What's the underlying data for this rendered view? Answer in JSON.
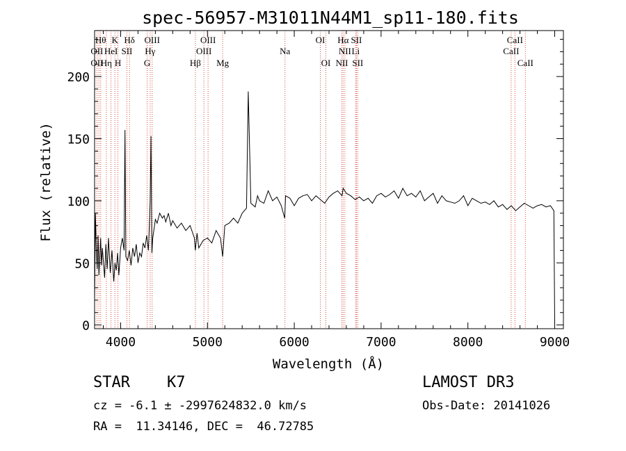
{
  "colors": {
    "spectrum": "#000000",
    "line_marker": "#d24a3a",
    "background": "#ffffff"
  },
  "chart_data": {
    "type": "line",
    "title": "spec-56957-M31011N44M1_sp11-180.fits",
    "xlabel": "Wavelength (Å)",
    "ylabel": "Flux (relative)",
    "xlim": [
      3700,
      9100
    ],
    "ylim": [
      -3,
      237
    ],
    "xticks": [
      4000,
      5000,
      6000,
      7000,
      8000,
      9000
    ],
    "yticks": [
      0,
      50,
      100,
      150,
      200
    ],
    "grid": false,
    "series": [
      {
        "x": [
          3700,
          3710,
          3720,
          3730,
          3740,
          3750,
          3760,
          3770,
          3780,
          3790,
          3800,
          3815,
          3830,
          3845,
          3860,
          3880,
          3900,
          3920,
          3935,
          3950,
          3965,
          3980,
          4000,
          4020,
          4040,
          4050,
          4060,
          4080,
          4100,
          4120,
          4140,
          4160,
          4180,
          4200,
          4220,
          4240,
          4260,
          4280,
          4300,
          4320,
          4340,
          4350,
          4360,
          4370,
          4380,
          4400,
          4420,
          4450,
          4480,
          4500,
          4520,
          4550,
          4580,
          4600,
          4650,
          4700,
          4750,
          4800,
          4850,
          4860,
          4880,
          4900,
          4950,
          5000,
          5050,
          5100,
          5150,
          5175,
          5200,
          5250,
          5300,
          5350,
          5400,
          5450,
          5470,
          5500,
          5550,
          5577,
          5600,
          5650,
          5700,
          5750,
          5800,
          5850,
          5890,
          5900,
          5950,
          6000,
          6050,
          6100,
          6150,
          6200,
          6250,
          6300,
          6350,
          6400,
          6450,
          6500,
          6550,
          6563,
          6600,
          6650,
          6700,
          6750,
          6800,
          6850,
          6900,
          6950,
          7000,
          7050,
          7100,
          7150,
          7200,
          7250,
          7300,
          7350,
          7400,
          7450,
          7500,
          7550,
          7600,
          7650,
          7700,
          7750,
          7800,
          7850,
          7900,
          7950,
          8000,
          8050,
          8100,
          8150,
          8200,
          8250,
          8300,
          8350,
          8400,
          8450,
          8500,
          8550,
          8600,
          8650,
          8700,
          8750,
          8800,
          8850,
          8900,
          8950,
          8990,
          9000
        ],
        "y": [
          20,
          90,
          60,
          45,
          72,
          40,
          55,
          70,
          48,
          62,
          52,
          38,
          65,
          45,
          70,
          42,
          60,
          35,
          50,
          44,
          58,
          40,
          62,
          70,
          60,
          157,
          55,
          52,
          60,
          48,
          62,
          55,
          65,
          50,
          58,
          55,
          66,
          62,
          72,
          60,
          100,
          152,
          58,
          70,
          75,
          85,
          82,
          90,
          86,
          88,
          83,
          90,
          80,
          84,
          78,
          82,
          76,
          80,
          70,
          60,
          74,
          62,
          68,
          70,
          66,
          76,
          70,
          55,
          80,
          82,
          86,
          82,
          90,
          94,
          188,
          98,
          95,
          104,
          100,
          98,
          108,
          100,
          103,
          96,
          86,
          104,
          102,
          96,
          102,
          104,
          105,
          100,
          104,
          101,
          98,
          103,
          106,
          108,
          104,
          110,
          106,
          104,
          101,
          103,
          100,
          102,
          98,
          104,
          106,
          103,
          105,
          108,
          102,
          110,
          104,
          106,
          103,
          108,
          100,
          103,
          106,
          98,
          104,
          100,
          99,
          98,
          100,
          104,
          96,
          102,
          100,
          98,
          99,
          97,
          100,
          95,
          97,
          93,
          96,
          92,
          95,
          98,
          96,
          94,
          96,
          97,
          95,
          96,
          92,
          2
        ]
      }
    ],
    "line_markers": [
      {
        "x": 3727,
        "labels": [
          "OII"
        ]
      },
      {
        "x": 3750,
        "labels": [
          "OII"
        ]
      },
      {
        "x": 3770,
        "labels": [
          "Hθ"
        ]
      },
      {
        "x": 3835,
        "labels": [
          "Hη"
        ]
      },
      {
        "x": 3889,
        "labels": [
          "HeI"
        ]
      },
      {
        "x": 3934,
        "labels": [
          "K"
        ]
      },
      {
        "x": 3969,
        "labels": [
          "H"
        ]
      },
      {
        "x": 4072,
        "labels": [
          "SII"
        ]
      },
      {
        "x": 4102,
        "labels": [
          "Hδ"
        ]
      },
      {
        "x": 4305,
        "labels": [
          "G"
        ]
      },
      {
        "x": 4340,
        "labels": [
          "Hγ"
        ]
      },
      {
        "x": 4363,
        "labels": [
          "OIII"
        ]
      },
      {
        "x": 4861,
        "labels": [
          "Hβ"
        ]
      },
      {
        "x": 4959,
        "labels": [
          "OIII"
        ]
      },
      {
        "x": 5007,
        "labels": [
          "OIII"
        ]
      },
      {
        "x": 5175,
        "labels": [
          "Mg"
        ]
      },
      {
        "x": 5893,
        "labels": [
          "Na"
        ]
      },
      {
        "x": 6300,
        "labels": [
          "OI"
        ]
      },
      {
        "x": 6364,
        "labels": [
          "OI"
        ]
      },
      {
        "x": 6548,
        "labels": [
          "NII"
        ]
      },
      {
        "x": 6563,
        "labels": [
          "Hα"
        ]
      },
      {
        "x": 6583,
        "labels": [
          "NII"
        ]
      },
      {
        "x": 6707,
        "labels": [
          "Li"
        ]
      },
      {
        "x": 6716,
        "labels": [
          "SII"
        ]
      },
      {
        "x": 6731,
        "labels": [
          "SII"
        ]
      },
      {
        "x": 8498,
        "labels": [
          "CaII"
        ]
      },
      {
        "x": 8542,
        "labels": [
          "CaII"
        ]
      },
      {
        "x": 8662,
        "labels": [
          "CaII"
        ]
      }
    ],
    "line_labels": [
      {
        "text": "Hθ",
        "x": 3770,
        "row": 1
      },
      {
        "text": "K",
        "x": 3934,
        "row": 1
      },
      {
        "text": "Hδ",
        "x": 4102,
        "row": 1
      },
      {
        "text": "OIII",
        "x": 4363,
        "row": 1
      },
      {
        "text": "OIII",
        "x": 5007,
        "row": 1
      },
      {
        "text": "OI",
        "x": 6300,
        "row": 1
      },
      {
        "text": "Hα",
        "x": 6563,
        "row": 1
      },
      {
        "text": "SII",
        "x": 6716,
        "row": 1
      },
      {
        "text": "CaII",
        "x": 8542,
        "row": 1
      },
      {
        "text": "OII",
        "x": 3727,
        "row": 2
      },
      {
        "text": "HeI",
        "x": 3889,
        "row": 2
      },
      {
        "text": "SII",
        "x": 4072,
        "row": 2
      },
      {
        "text": "Hγ",
        "x": 4340,
        "row": 2
      },
      {
        "text": "OIII",
        "x": 4959,
        "row": 2
      },
      {
        "text": "Na",
        "x": 5893,
        "row": 2
      },
      {
        "text": "NII",
        "x": 6583,
        "row": 2
      },
      {
        "text": "Li",
        "x": 6707,
        "row": 2
      },
      {
        "text": "CaII",
        "x": 8498,
        "row": 2
      },
      {
        "text": "OII",
        "x": 3727,
        "row": 3
      },
      {
        "text": "Hη",
        "x": 3835,
        "row": 3
      },
      {
        "text": "H",
        "x": 3969,
        "row": 3
      },
      {
        "text": "G",
        "x": 4305,
        "row": 3
      },
      {
        "text": "Hβ",
        "x": 4861,
        "row": 3
      },
      {
        "text": "Mg",
        "x": 5175,
        "row": 3
      },
      {
        "text": "OI",
        "x": 6364,
        "row": 3
      },
      {
        "text": "NII",
        "x": 6548,
        "row": 3
      },
      {
        "text": "SII",
        "x": 6731,
        "row": 3
      },
      {
        "text": "CaII",
        "x": 8662,
        "row": 3
      }
    ]
  },
  "info": {
    "object_class": "STAR",
    "subclass": "K7",
    "redshift_line": "cz = -6.1 ± -2997624832.0 km/s",
    "coords_line": "RA =  11.34146, DEC =  46.72785",
    "survey": "LAMOST DR3",
    "obs_date": "Obs-Date: 20141026"
  }
}
